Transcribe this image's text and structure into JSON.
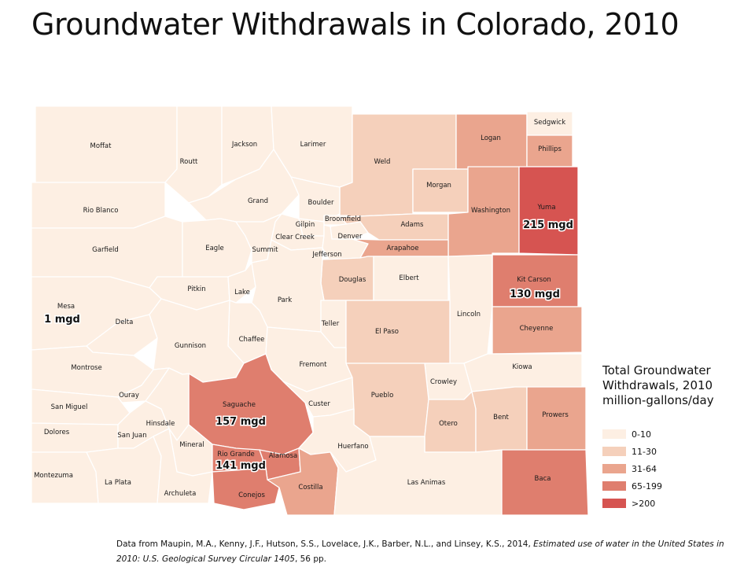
{
  "title": "Groundwater Withdrawals in Colorado, 2010",
  "legend": {
    "title": "Total Groundwater Withdrawals, 2010 million-gallons/day",
    "classes": [
      {
        "label": "0-10",
        "color": "#fdefe3"
      },
      {
        "label": "11-30",
        "color": "#f5d0bb"
      },
      {
        "label": "31-64",
        "color": "#eaa58e"
      },
      {
        "label": "65-199",
        "color": "#df7e6e"
      },
      {
        "label": ">200",
        "color": "#d65451"
      }
    ]
  },
  "counties": [
    {
      "name": "Moffat",
      "class": 0
    },
    {
      "name": "Routt",
      "class": 0
    },
    {
      "name": "Jackson",
      "class": 0
    },
    {
      "name": "Larimer",
      "class": 0
    },
    {
      "name": "Weld",
      "class": 1
    },
    {
      "name": "Logan",
      "class": 2
    },
    {
      "name": "Sedgwick",
      "class": 0
    },
    {
      "name": "Phillips",
      "class": 2
    },
    {
      "name": "Morgan",
      "class": 1
    },
    {
      "name": "Rio Blanco",
      "class": 0
    },
    {
      "name": "Grand",
      "class": 0
    },
    {
      "name": "Boulder",
      "class": 0
    },
    {
      "name": "Broomfield",
      "class": 0
    },
    {
      "name": "Adams",
      "class": 1
    },
    {
      "name": "Washington",
      "class": 2
    },
    {
      "name": "Yuma",
      "class": 4
    },
    {
      "name": "Gilpin",
      "class": 0
    },
    {
      "name": "Clear Creek",
      "class": 0
    },
    {
      "name": "Denver",
      "class": 0
    },
    {
      "name": "Garfield",
      "class": 0
    },
    {
      "name": "Eagle",
      "class": 0
    },
    {
      "name": "Summit",
      "class": 0
    },
    {
      "name": "Jefferson",
      "class": 0
    },
    {
      "name": "Arapahoe",
      "class": 2
    },
    {
      "name": "Douglas",
      "class": 1
    },
    {
      "name": "Elbert",
      "class": 0
    },
    {
      "name": "Kit Carson",
      "class": 3
    },
    {
      "name": "Pitkin",
      "class": 0
    },
    {
      "name": "Lake",
      "class": 0
    },
    {
      "name": "Park",
      "class": 0
    },
    {
      "name": "Mesa",
      "class": 0
    },
    {
      "name": "Delta",
      "class": 0
    },
    {
      "name": "Lincoln",
      "class": 0
    },
    {
      "name": "Teller",
      "class": 0
    },
    {
      "name": "Chaffee",
      "class": 0
    },
    {
      "name": "Gunnison",
      "class": 0
    },
    {
      "name": "El Paso",
      "class": 1
    },
    {
      "name": "Cheyenne",
      "class": 2
    },
    {
      "name": "Montrose",
      "class": 0
    },
    {
      "name": "Fremont",
      "class": 0
    },
    {
      "name": "Kiowa",
      "class": 0
    },
    {
      "name": "Crowley",
      "class": 0
    },
    {
      "name": "Ouray",
      "class": 0
    },
    {
      "name": "San Miguel",
      "class": 0
    },
    {
      "name": "Saguache",
      "class": 3
    },
    {
      "name": "Custer",
      "class": 0
    },
    {
      "name": "Pueblo",
      "class": 1
    },
    {
      "name": "Hinsdale",
      "class": 0
    },
    {
      "name": "Otero",
      "class": 1
    },
    {
      "name": "Bent",
      "class": 1
    },
    {
      "name": "Prowers",
      "class": 2
    },
    {
      "name": "Dolores",
      "class": 0
    },
    {
      "name": "San Juan",
      "class": 0
    },
    {
      "name": "Mineral",
      "class": 0
    },
    {
      "name": "Rio Grande",
      "class": 3
    },
    {
      "name": "Alamosa",
      "class": 3
    },
    {
      "name": "Huerfano",
      "class": 0
    },
    {
      "name": "Montezuma",
      "class": 0
    },
    {
      "name": "La Plata",
      "class": 0
    },
    {
      "name": "Archuleta",
      "class": 0
    },
    {
      "name": "Conejos",
      "class": 3
    },
    {
      "name": "Costilla",
      "class": 2
    },
    {
      "name": "Las Animas",
      "class": 0
    },
    {
      "name": "Baca",
      "class": 3
    }
  ],
  "annotations": [
    {
      "county": "Yuma",
      "text": "215 mgd"
    },
    {
      "county": "Kit Carson",
      "text": "130 mgd"
    },
    {
      "county": "Mesa",
      "text": "1 mgd"
    },
    {
      "county": "Saguache",
      "text": "157 mgd"
    },
    {
      "county": "Rio Grande",
      "text": "141 mgd"
    }
  ],
  "source": {
    "text": "Data from Maupin, M.A., Kenny, J.F., Hutson, S.S., Lovelace, J.K., Barber, N.L., and Linsey, K.S., 2014, ",
    "italic": "Estimated use of water in the United States in 2010: U.S. Geological Survey Circular 1405",
    "tail": ", 56 pp."
  }
}
